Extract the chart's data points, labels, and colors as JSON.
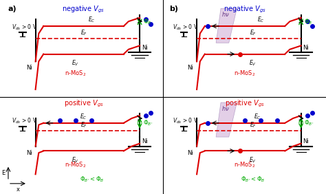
{
  "fig_width": 4.74,
  "fig_height": 2.82,
  "dpi": 100,
  "bg_color": "#ffffff",
  "panel_titles": [
    "negative V_gs",
    "negative V_gs",
    "positive V_gs",
    "positive V_gs"
  ],
  "panel_labels": [
    "a)",
    "b)",
    "",
    ""
  ],
  "red": "#dd0000",
  "blue": "#0000cc",
  "green": "#00aa00",
  "dark": "#111111",
  "gray": "#888888"
}
